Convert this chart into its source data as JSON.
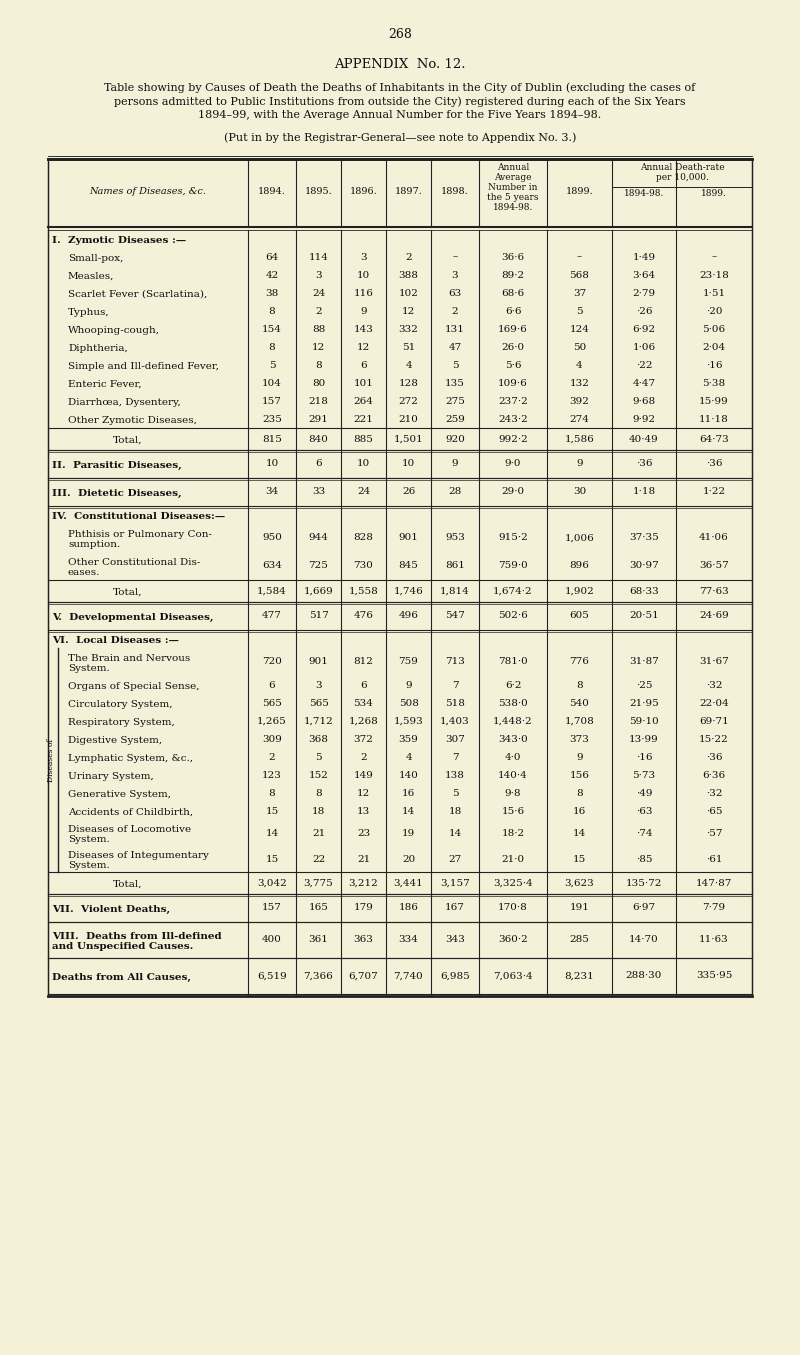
{
  "page_number": "268",
  "appendix_title": "APPENDIX  No. 12.",
  "table_title_line1": "Table showing by Causes of Death the Deaths of Inhabitants in the City of Dublin (excluding the cases of",
  "table_title_line2": "persons admitted to Public Institutions from outside the City) registered during each of the Six Years",
  "table_title_line3": "1894–99, with the Average Annual Number for the Five Years 1894–98.",
  "subtitle": "(Put in by the Registrar-General—see note to Appendix No. 3.)",
  "bg_color": "#f5f0d8",
  "rows": [
    {
      "name": "I.  Zymotic Diseases :—",
      "indent": 0,
      "bold": true,
      "small_caps": true,
      "section_header": true,
      "is_total": false,
      "vals": [
        "",
        "",
        "",
        "",
        "",
        "",
        "",
        "",
        ""
      ],
      "rh": 18
    },
    {
      "name": "Small-pox,",
      "indent": 1,
      "bold": false,
      "small_caps": false,
      "section_header": false,
      "is_total": false,
      "vals": [
        "64",
        "114",
        "3",
        "2",
        "–",
        "36·6",
        "–",
        "1·49",
        "–"
      ],
      "rh": 18
    },
    {
      "name": "Measles,",
      "indent": 1,
      "bold": false,
      "small_caps": false,
      "section_header": false,
      "is_total": false,
      "vals": [
        "42",
        "3",
        "10",
        "388",
        "3",
        "89·2",
        "568",
        "3·64",
        "23·18"
      ],
      "rh": 18
    },
    {
      "name": "Scarlet Fever (Scarlatina),",
      "indent": 1,
      "bold": false,
      "small_caps": false,
      "section_header": false,
      "is_total": false,
      "vals": [
        "38",
        "24",
        "116",
        "102",
        "63",
        "68·6",
        "37",
        "2·79",
        "1·51"
      ],
      "rh": 18
    },
    {
      "name": "Typhus,",
      "indent": 1,
      "bold": false,
      "small_caps": false,
      "section_header": false,
      "is_total": false,
      "vals": [
        "8",
        "2",
        "9",
        "12",
        "2",
        "6·6",
        "5",
        "·26",
        "·20"
      ],
      "rh": 18
    },
    {
      "name": "Whooping-cough,",
      "indent": 1,
      "bold": false,
      "small_caps": false,
      "section_header": false,
      "is_total": false,
      "vals": [
        "154",
        "88",
        "143",
        "332",
        "131",
        "169·6",
        "124",
        "6·92",
        "5·06"
      ],
      "rh": 18
    },
    {
      "name": "Diphtheria,",
      "indent": 1,
      "bold": false,
      "small_caps": false,
      "section_header": false,
      "is_total": false,
      "vals": [
        "8",
        "12",
        "12",
        "51",
        "47",
        "26·0",
        "50",
        "1·06",
        "2·04"
      ],
      "rh": 18
    },
    {
      "name": "Simple and Ill-defined Fever,",
      "indent": 1,
      "bold": false,
      "small_caps": false,
      "section_header": false,
      "is_total": false,
      "vals": [
        "5",
        "8",
        "6",
        "4",
        "5",
        "5·6",
        "4",
        "·22",
        "·16"
      ],
      "rh": 18
    },
    {
      "name": "Enteric Fever,",
      "indent": 1,
      "bold": false,
      "small_caps": false,
      "section_header": false,
      "is_total": false,
      "vals": [
        "104",
        "80",
        "101",
        "128",
        "135",
        "109·6",
        "132",
        "4·47",
        "5·38"
      ],
      "rh": 18
    },
    {
      "name": "Diarrhœa, Dysentery,",
      "indent": 1,
      "bold": false,
      "small_caps": false,
      "section_header": false,
      "is_total": false,
      "vals": [
        "157",
        "218",
        "264",
        "272",
        "275",
        "237·2",
        "392",
        "9·68",
        "15·99"
      ],
      "rh": 18
    },
    {
      "name": "Other Zymotic Diseases,",
      "indent": 1,
      "bold": false,
      "small_caps": false,
      "section_header": false,
      "is_total": false,
      "vals": [
        "235",
        "291",
        "221",
        "210",
        "259",
        "243·2",
        "274",
        "9·92",
        "11·18"
      ],
      "rh": 18
    },
    {
      "name": "Total,",
      "indent": 2,
      "bold": false,
      "small_caps": false,
      "section_header": false,
      "is_total": true,
      "vals": [
        "815",
        "840",
        "885",
        "1,501",
        "920",
        "992·2",
        "1,586",
        "40·49",
        "64·73"
      ],
      "rh": 22
    },
    {
      "name": "II.  Parasitic Diseases,",
      "indent": 0,
      "bold": true,
      "small_caps": true,
      "section_header": false,
      "is_total": true,
      "vals": [
        "10",
        "6",
        "10",
        "10",
        "9",
        "9·0",
        "9",
        "·36",
        "·36"
      ],
      "rh": 28
    },
    {
      "name": "III.  Dietetic Diseases,",
      "indent": 0,
      "bold": true,
      "small_caps": true,
      "section_header": false,
      "is_total": true,
      "vals": [
        "34",
        "33",
        "24",
        "26",
        "28",
        "29·0",
        "30",
        "1·18",
        "1·22"
      ],
      "rh": 28
    },
    {
      "name": "IV.  Constitutional Diseases:—",
      "indent": 0,
      "bold": true,
      "small_caps": true,
      "section_header": true,
      "is_total": false,
      "vals": [
        "",
        "",
        "",
        "",
        "",
        "",
        "",
        "",
        ""
      ],
      "rh": 18
    },
    {
      "name": "Phthisis or Pulmonary Con-\nsumption.",
      "indent": 1,
      "bold": false,
      "small_caps": false,
      "section_header": false,
      "is_total": false,
      "vals": [
        "950",
        "944",
        "828",
        "901",
        "953",
        "915·2",
        "1,006",
        "37·35",
        "41·06"
      ],
      "rh": 28
    },
    {
      "name": "Other Constitutional Dis-\neases.",
      "indent": 1,
      "bold": false,
      "small_caps": false,
      "section_header": false,
      "is_total": false,
      "vals": [
        "634",
        "725",
        "730",
        "845",
        "861",
        "759·0",
        "896",
        "30·97",
        "36·57"
      ],
      "rh": 28
    },
    {
      "name": "Total,",
      "indent": 2,
      "bold": false,
      "small_caps": false,
      "section_header": false,
      "is_total": true,
      "vals": [
        "1,584",
        "1,669",
        "1,558",
        "1,746",
        "1,814",
        "1,674·2",
        "1,902",
        "68·33",
        "77·63"
      ],
      "rh": 22
    },
    {
      "name": "V.  Developmental Diseases,",
      "indent": 0,
      "bold": true,
      "small_caps": true,
      "section_header": false,
      "is_total": true,
      "vals": [
        "477",
        "517",
        "476",
        "496",
        "547",
        "502·6",
        "605",
        "20·51",
        "24·69"
      ],
      "rh": 28
    },
    {
      "name": "VI.  Local Diseases :—",
      "indent": 0,
      "bold": true,
      "small_caps": true,
      "section_header": true,
      "is_total": false,
      "vals": [
        "",
        "",
        "",
        "",
        "",
        "",
        "",
        "",
        ""
      ],
      "rh": 18
    },
    {
      "name": "The Brain and Nervous\nSystem.",
      "indent": 1,
      "bold": false,
      "small_caps": false,
      "section_header": false,
      "is_total": false,
      "vals": [
        "720",
        "901",
        "812",
        "759",
        "713",
        "781·0",
        "776",
        "31·87",
        "31·67"
      ],
      "rh": 28
    },
    {
      "name": "Organs of Special Sense,",
      "indent": 1,
      "bold": false,
      "small_caps": false,
      "section_header": false,
      "is_total": false,
      "vals": [
        "6",
        "3",
        "6",
        "9",
        "7",
        "6·2",
        "8",
        "·25",
        "·32"
      ],
      "rh": 18
    },
    {
      "name": "Circulatory System,",
      "indent": 1,
      "bold": false,
      "small_caps": false,
      "section_header": false,
      "is_total": false,
      "vals": [
        "565",
        "565",
        "534",
        "508",
        "518",
        "538·0",
        "540",
        "21·95",
        "22·04"
      ],
      "rh": 18
    },
    {
      "name": "Respiratory System,",
      "indent": 1,
      "bold": false,
      "small_caps": false,
      "section_header": false,
      "is_total": false,
      "vals": [
        "1,265",
        "1,712",
        "1,268",
        "1,593",
        "1,403",
        "1,448·2",
        "1,708",
        "59·10",
        "69·71"
      ],
      "rh": 18
    },
    {
      "name": "Digestive System,",
      "indent": 1,
      "bold": false,
      "small_caps": false,
      "section_header": false,
      "is_total": false,
      "vals": [
        "309",
        "368",
        "372",
        "359",
        "307",
        "343·0",
        "373",
        "13·99",
        "15·22"
      ],
      "rh": 18
    },
    {
      "name": "Lymphatic System, &c.,",
      "indent": 1,
      "bold": false,
      "small_caps": false,
      "section_header": false,
      "is_total": false,
      "vals": [
        "2",
        "5",
        "2",
        "4",
        "7",
        "4·0",
        "9",
        "·16",
        "·36"
      ],
      "rh": 18
    },
    {
      "name": "Urinary System,",
      "indent": 1,
      "bold": false,
      "small_caps": false,
      "section_header": false,
      "is_total": false,
      "vals": [
        "123",
        "152",
        "149",
        "140",
        "138",
        "140·4",
        "156",
        "5·73",
        "6·36"
      ],
      "rh": 18
    },
    {
      "name": "Generative System,",
      "indent": 1,
      "bold": false,
      "small_caps": false,
      "section_header": false,
      "is_total": false,
      "vals": [
        "8",
        "8",
        "12",
        "16",
        "5",
        "9·8",
        "8",
        "·49",
        "·32"
      ],
      "rh": 18
    },
    {
      "name": "Accidents of Childbirth,",
      "indent": 1,
      "bold": false,
      "small_caps": false,
      "section_header": false,
      "is_total": false,
      "vals": [
        "15",
        "18",
        "13",
        "14",
        "18",
        "15·6",
        "16",
        "·63",
        "·65"
      ],
      "rh": 18
    },
    {
      "name": "Diseases of Locomotive\nSystem.",
      "indent": 1,
      "bold": false,
      "small_caps": false,
      "section_header": false,
      "is_total": false,
      "vals": [
        "14",
        "21",
        "23",
        "19",
        "14",
        "18·2",
        "14",
        "·74",
        "·57"
      ],
      "rh": 26
    },
    {
      "name": "Diseases of Integumentary\nSystem.",
      "indent": 1,
      "bold": false,
      "small_caps": false,
      "section_header": false,
      "is_total": false,
      "vals": [
        "15",
        "22",
        "21",
        "20",
        "27",
        "21·0",
        "15",
        "·85",
        "·61"
      ],
      "rh": 26
    },
    {
      "name": "Total,",
      "indent": 2,
      "bold": false,
      "small_caps": false,
      "section_header": false,
      "is_total": true,
      "vals": [
        "3,042",
        "3,775",
        "3,212",
        "3,441",
        "3,157",
        "3,325·4",
        "3,623",
        "135·72",
        "147·87"
      ],
      "rh": 22
    },
    {
      "name": "VII.  Violent Deaths,",
      "indent": 0,
      "bold": true,
      "small_caps": true,
      "section_header": false,
      "is_total": true,
      "vals": [
        "157",
        "165",
        "179",
        "186",
        "167",
        "170·8",
        "191",
        "6·97",
        "7·79"
      ],
      "rh": 28
    },
    {
      "name": "VIII.  Deaths from Ill-defined\nand Unspecified Causes.",
      "indent": 0,
      "bold": true,
      "small_caps": true,
      "section_header": false,
      "is_total": true,
      "vals": [
        "400",
        "361",
        "363",
        "334",
        "343",
        "360·2",
        "285",
        "14·70",
        "11·63"
      ],
      "rh": 36
    },
    {
      "name": "Deaths from All Causes,",
      "indent": 0,
      "bold": true,
      "small_caps": true,
      "section_header": false,
      "is_total": true,
      "vals": [
        "6,519",
        "7,366",
        "6,707",
        "7,740",
        "6,985",
        "7,063·4",
        "8,231",
        "288·30",
        "335·95"
      ],
      "rh": 36
    }
  ],
  "col_lines": [
    48,
    248,
    296,
    341,
    386,
    431,
    479,
    547,
    612,
    676,
    752
  ]
}
